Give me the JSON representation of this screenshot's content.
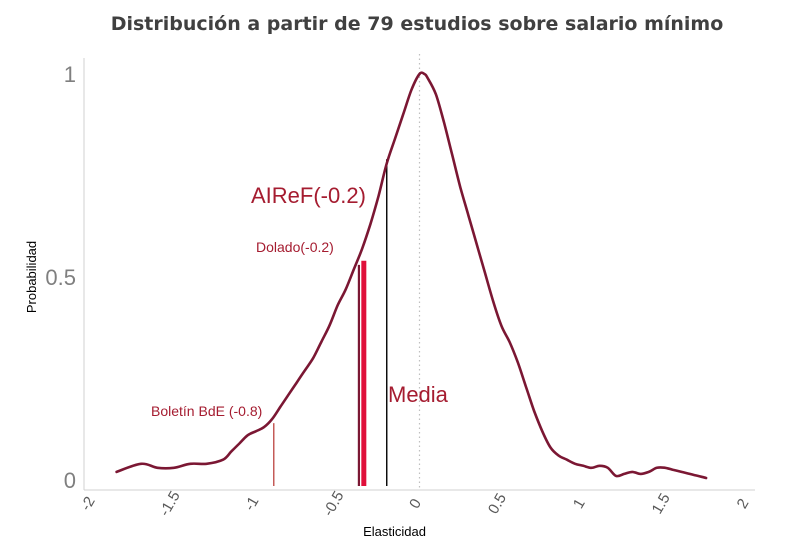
{
  "chart_data": {
    "type": "line",
    "title": "Distribución a partir de 79 estudios sobre salario mínimo",
    "xlabel": "Elasticidad",
    "ylabel": "Probabilidad",
    "xlim": [
      -2,
      2
    ],
    "ylim": [
      0,
      1
    ],
    "x_ticks": [
      "-2",
      "-1.5",
      "-1",
      "-0.5",
      "0",
      "0.5",
      "1",
      "1.5",
      "2"
    ],
    "y_ticks": [
      "0",
      "0.5",
      "1"
    ],
    "grid": false,
    "series": [
      {
        "color": "#7b1733",
        "x": [
          -1.85,
          -1.7,
          -1.6,
          -1.5,
          -1.4,
          -1.3,
          -1.2,
          -1.15,
          -1.1,
          -1.05,
          -1.0,
          -0.95,
          -0.9,
          -0.85,
          -0.8,
          -0.75,
          -0.7,
          -0.65,
          -0.6,
          -0.55,
          -0.5,
          -0.45,
          -0.4,
          -0.35,
          -0.3,
          -0.25,
          -0.2,
          -0.15,
          -0.1,
          -0.05,
          0.0,
          0.03,
          0.05,
          0.1,
          0.15,
          0.2,
          0.25,
          0.3,
          0.35,
          0.4,
          0.45,
          0.5,
          0.55,
          0.6,
          0.65,
          0.7,
          0.75,
          0.8,
          0.85,
          0.9,
          0.95,
          1.0,
          1.05,
          1.1,
          1.15,
          1.2,
          1.25,
          1.3,
          1.35,
          1.4,
          1.45,
          1.5,
          1.55,
          1.6,
          1.65,
          1.7,
          1.75
        ],
        "values": [
          0.02,
          0.04,
          0.03,
          0.03,
          0.04,
          0.04,
          0.05,
          0.07,
          0.09,
          0.11,
          0.12,
          0.13,
          0.15,
          0.18,
          0.21,
          0.24,
          0.27,
          0.3,
          0.34,
          0.38,
          0.43,
          0.47,
          0.52,
          0.57,
          0.63,
          0.7,
          0.78,
          0.84,
          0.9,
          0.96,
          1.0,
          1.0,
          0.99,
          0.95,
          0.88,
          0.8,
          0.72,
          0.65,
          0.58,
          0.51,
          0.44,
          0.38,
          0.34,
          0.29,
          0.23,
          0.17,
          0.12,
          0.08,
          0.06,
          0.05,
          0.04,
          0.035,
          0.03,
          0.035,
          0.03,
          0.01,
          0.015,
          0.02,
          0.015,
          0.02,
          0.03,
          0.03,
          0.025,
          0.02,
          0.015,
          0.01,
          0.005
        ]
      }
    ],
    "reference_lines": [
      {
        "x": 0.0,
        "style": "dotted",
        "color": "#bfbfbf"
      }
    ],
    "markers": [
      {
        "x": -0.89,
        "y": 0.14,
        "color": "#c0504d",
        "weight": "thin"
      },
      {
        "x": -0.37,
        "y": 0.53,
        "color": "#7b1733",
        "weight": "medium"
      },
      {
        "x": -0.34,
        "y": 0.54,
        "color": "#e0103a",
        "weight": "thick"
      },
      {
        "x": -0.2,
        "y": 0.79,
        "color": "#000000",
        "weight": "thin"
      }
    ],
    "annotations": [
      {
        "text": "Boletín BdE (-0.8)",
        "size": "small"
      },
      {
        "text": "Dolado(-0.2)",
        "size": "small"
      },
      {
        "text": "AIReF(-0.2)",
        "size": "large"
      },
      {
        "text": "Media",
        "size": "large"
      }
    ],
    "legend": "none"
  }
}
